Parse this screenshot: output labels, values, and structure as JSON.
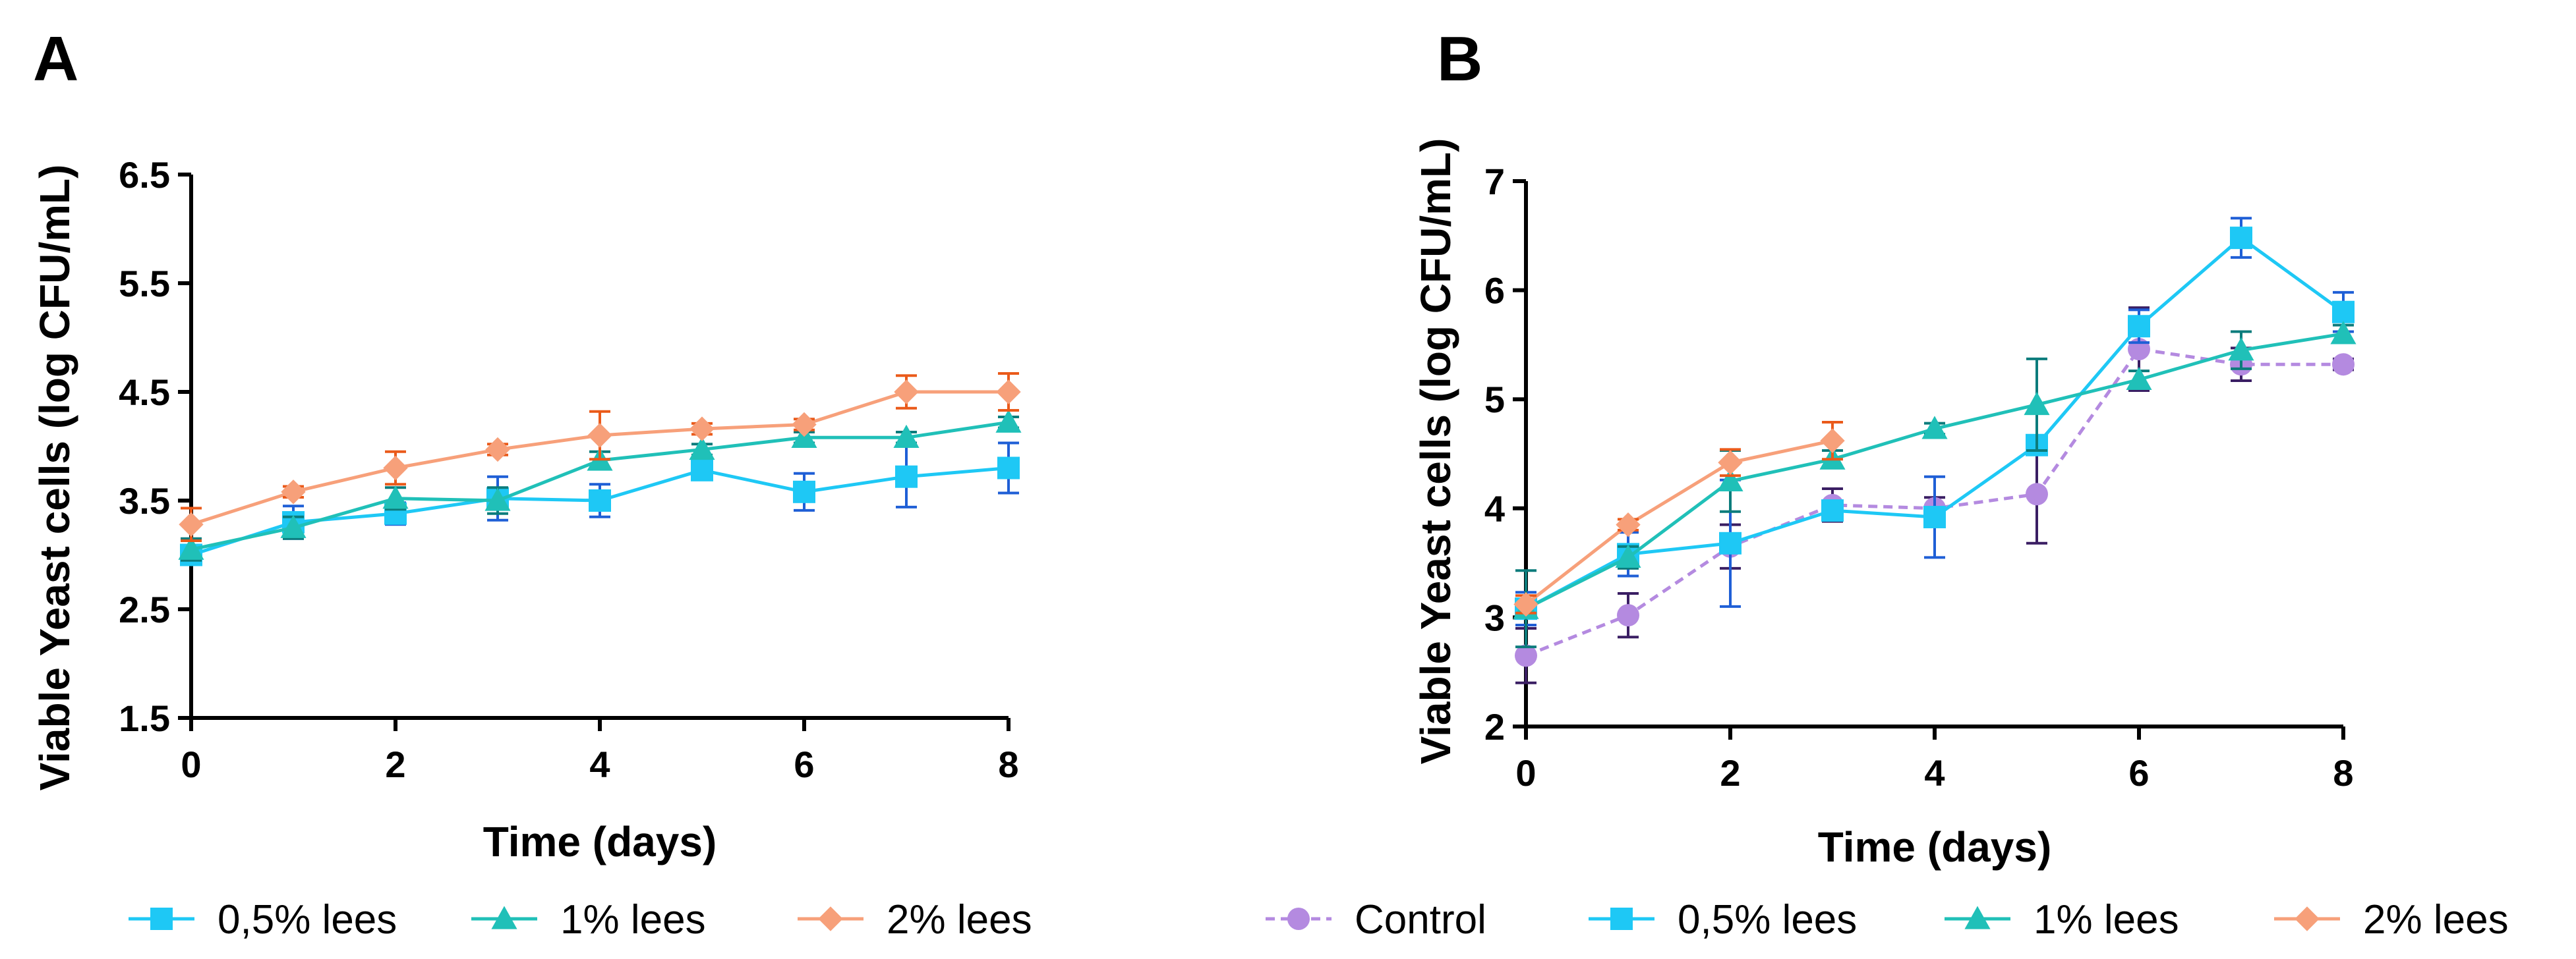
{
  "chart_data": [
    {
      "type": "line",
      "panel": "A",
      "xlabel": "Time (days)",
      "ylabel": "Viable Yeast cells (log CFU/mL)",
      "xlim": [
        0,
        8
      ],
      "ylim": [
        1.5,
        6.5
      ],
      "xticks": [
        0,
        2,
        4,
        6,
        8
      ],
      "yticks": [
        1.5,
        2.5,
        3.5,
        4.5,
        5.5,
        6.5
      ],
      "xtick_labels": [
        "0",
        "2",
        "4",
        "6",
        "8"
      ],
      "ytick_labels": [
        "1.5",
        "2.5",
        "3.5",
        "4.5",
        "5.5",
        "6.5"
      ],
      "grid": false,
      "legend_position": "bottom",
      "series": [
        {
          "name": "0,5% lees",
          "marker": "square",
          "color": "#1ec8f5",
          "err_color": "#1f5fd6",
          "dashed": false,
          "x": [
            0,
            1,
            2,
            3,
            4,
            5,
            6,
            7,
            8
          ],
          "y": [
            3.0,
            3.3,
            3.38,
            3.52,
            3.5,
            3.78,
            3.58,
            3.72,
            3.8
          ],
          "err": [
            0.08,
            0.15,
            0.1,
            0.2,
            0.15,
            0.08,
            0.17,
            0.28,
            0.23
          ]
        },
        {
          "name": "1% lees",
          "marker": "triangle",
          "color": "#20c0b8",
          "err_color": "#0c7c7c",
          "dashed": false,
          "x": [
            0,
            1,
            2,
            3,
            4,
            5,
            6,
            7,
            8
          ],
          "y": [
            3.05,
            3.25,
            3.52,
            3.5,
            3.87,
            3.97,
            4.08,
            4.08,
            4.22
          ],
          "err": [
            0.1,
            0.1,
            0.1,
            0.12,
            0.08,
            0.05,
            0.05,
            0.05,
            0.05
          ]
        },
        {
          "name": "2% lees",
          "marker": "diamond",
          "color": "#f7a07a",
          "err_color": "#ea5a1a",
          "dashed": false,
          "x": [
            0,
            1,
            2,
            3,
            4,
            5,
            6,
            7,
            8
          ],
          "y": [
            3.28,
            3.58,
            3.8,
            3.97,
            4.1,
            4.16,
            4.2,
            4.5,
            4.5
          ],
          "err": [
            0.15,
            0.05,
            0.15,
            0.05,
            0.22,
            0.05,
            0.05,
            0.15,
            0.17
          ]
        }
      ]
    },
    {
      "type": "line",
      "panel": "B",
      "xlabel": "Time (days)",
      "ylabel": "Viable Yeast cells (log CFU/mL)",
      "xlim": [
        0,
        8
      ],
      "ylim": [
        2,
        7
      ],
      "xticks": [
        0,
        2,
        4,
        6,
        8
      ],
      "yticks": [
        2,
        3,
        4,
        5,
        6,
        7
      ],
      "xtick_labels": [
        "0",
        "2",
        "4",
        "6",
        "8"
      ],
      "ytick_labels": [
        "2",
        "3",
        "4",
        "5",
        "6",
        "7"
      ],
      "grid": false,
      "legend_position": "bottom",
      "series": [
        {
          "name": "Control",
          "marker": "circle",
          "color": "#b48ae0",
          "err_color": "#3a1e63",
          "dashed": true,
          "x": [
            0,
            1,
            2,
            3,
            4,
            5,
            6,
            7,
            8
          ],
          "y": [
            2.65,
            3.02,
            3.65,
            4.03,
            4.0,
            4.13,
            5.46,
            5.32,
            5.32
          ],
          "err": [
            0.25,
            0.2,
            0.2,
            0.15,
            0.1,
            0.45,
            0.38,
            0.15,
            0.05
          ]
        },
        {
          "name": "0,5% lees",
          "marker": "square",
          "color": "#1ec8f5",
          "err_color": "#1f5fd6",
          "dashed": false,
          "x": [
            0,
            1,
            2,
            3,
            4,
            5,
            6,
            7,
            8
          ],
          "y": [
            3.08,
            3.58,
            3.68,
            3.98,
            3.92,
            4.58,
            5.67,
            6.48,
            5.8
          ],
          "err": [
            0.15,
            0.2,
            0.58,
            0.05,
            0.37,
            0.08,
            0.15,
            0.18,
            0.18
          ]
        },
        {
          "name": "1% lees",
          "marker": "triangle",
          "color": "#20c0b8",
          "err_color": "#0c7c7c",
          "dashed": false,
          "x": [
            0,
            1,
            2,
            3,
            4,
            5,
            6,
            7,
            8
          ],
          "y": [
            3.08,
            3.55,
            4.25,
            4.45,
            4.73,
            4.95,
            5.18,
            5.45,
            5.6
          ],
          "err": [
            0.35,
            0.1,
            0.28,
            0.08,
            0.05,
            0.42,
            0.08,
            0.17,
            0.08
          ]
        },
        {
          "name": "2% lees",
          "marker": "diamond",
          "color": "#f7a07a",
          "err_color": "#ea5a1a",
          "dashed": false,
          "x": [
            0,
            1,
            2,
            3
          ],
          "y": [
            3.12,
            3.85,
            4.42,
            4.62
          ],
          "err": [
            0.08,
            0.05,
            0.12,
            0.17
          ]
        }
      ]
    }
  ]
}
